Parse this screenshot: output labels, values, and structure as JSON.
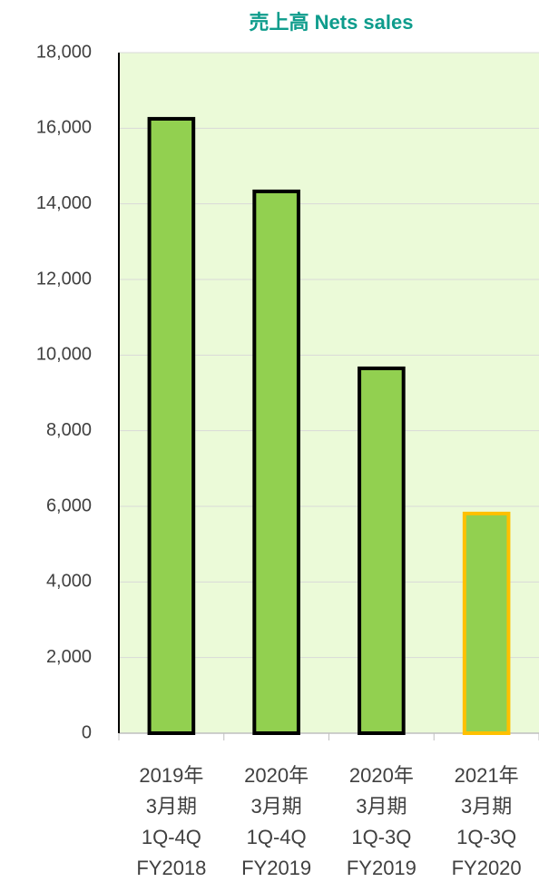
{
  "chart_data": {
    "type": "bar",
    "title": "売上高 Nets sales",
    "categories": [
      [
        "2019年",
        "3月期",
        "1Q-4Q",
        "FY2018"
      ],
      [
        "2020年",
        "3月期",
        "1Q-4Q",
        "FY2019"
      ],
      [
        "2020年",
        "3月期",
        "1Q-3Q",
        "FY2019"
      ],
      [
        "2021年",
        "3月期",
        "1Q-3Q",
        "FY2020"
      ]
    ],
    "values": [
      16250,
      14330,
      9650,
      5810
    ],
    "color": "#92d050",
    "edgecolors": [
      "#000000",
      "#000000",
      "#000000",
      "#ffc000"
    ],
    "ylim": [
      0,
      18000
    ],
    "yticks": [
      0,
      {
        "value": 2000,
        "label": "2,000"
      },
      {
        "value": 4000,
        "label": "4,000"
      },
      {
        "value": 6000,
        "label": "6,000"
      },
      {
        "value": 8000,
        "label": "8,000"
      },
      {
        "value": 10000,
        "label": "10,000"
      },
      {
        "value": 12000,
        "label": "12,000"
      },
      {
        "value": 14000,
        "label": "14,000"
      },
      {
        "value": 16000,
        "label": "16,000"
      },
      {
        "value": 18000,
        "label": "18,000"
      }
    ],
    "grid": true
  }
}
